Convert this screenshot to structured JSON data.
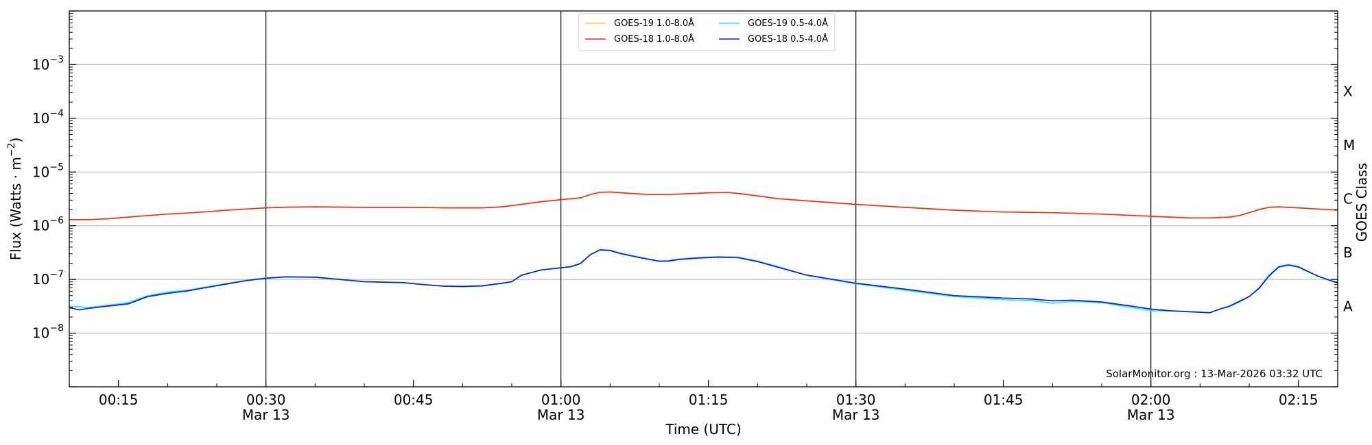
{
  "chart_data": {
    "type": "line",
    "xlabel": "Time (UTC)",
    "ylabel_main": "Flux (Watts · m",
    "ylabel_sup": "−2",
    "ylabel_tail": ")",
    "ylabel_right": "GOES Class",
    "yscale": "log",
    "ylim": [
      1e-09,
      0.01
    ],
    "xlim": [
      "00:10",
      "02:19"
    ],
    "grid": "horizontal",
    "legend_position": "top-center",
    "credit": "SolarMonitor.org : 13-Mar-2026 03:32 UTC",
    "y_ticks": [
      {
        "value": -8,
        "base": "10",
        "exp": "−8"
      },
      {
        "value": -7,
        "base": "10",
        "exp": "−7"
      },
      {
        "value": -6,
        "base": "10",
        "exp": "−6"
      },
      {
        "value": -5,
        "base": "10",
        "exp": "−5"
      },
      {
        "value": -4,
        "base": "10",
        "exp": "−4"
      },
      {
        "value": -3,
        "base": "10",
        "exp": "−3"
      }
    ],
    "goes_classes": [
      {
        "label": "A",
        "log_flux": -7.5
      },
      {
        "label": "B",
        "log_flux": -6.5
      },
      {
        "label": "C",
        "log_flux": -5.5
      },
      {
        "label": "M",
        "log_flux": -4.5
      },
      {
        "label": "X",
        "log_flux": -3.5
      }
    ],
    "x_ticks": [
      {
        "time": "00:15",
        "line1": "00:15",
        "line2": ""
      },
      {
        "time": "00:30",
        "line1": "00:30",
        "line2": "Mar 13"
      },
      {
        "time": "00:45",
        "line1": "00:45",
        "line2": ""
      },
      {
        "time": "01:00",
        "line1": "01:00",
        "line2": "Mar 13"
      },
      {
        "time": "01:15",
        "line1": "01:15",
        "line2": ""
      },
      {
        "time": "01:30",
        "line1": "01:30",
        "line2": "Mar 13"
      },
      {
        "time": "01:45",
        "line1": "01:45",
        "line2": ""
      },
      {
        "time": "02:00",
        "line1": "02:00",
        "line2": "Mar 13"
      },
      {
        "time": "02:15",
        "line1": "02:15",
        "line2": ""
      }
    ],
    "vertical_markers": [
      "00:30",
      "01:00",
      "01:30",
      "02:00"
    ],
    "series": [
      {
        "name": "GOES-19 1.0-8.0Å",
        "color": "#ffd21a",
        "x": [],
        "y": []
      },
      {
        "name": "GOES-18 1.0-8.0Å",
        "color": "#ff2a00",
        "x": [
          "00:10",
          "00:12",
          "00:14",
          "00:16",
          "00:18",
          "00:20",
          "00:22",
          "00:24",
          "00:26",
          "00:28",
          "00:30",
          "00:32",
          "00:35",
          "00:40",
          "00:45",
          "00:48",
          "00:50",
          "00:52",
          "00:54",
          "00:56",
          "00:58",
          "01:00",
          "01:02",
          "01:03",
          "01:04",
          "01:05",
          "01:07",
          "01:09",
          "01:11",
          "01:13",
          "01:15",
          "01:17",
          "01:18",
          "01:20",
          "01:22",
          "01:25",
          "01:30",
          "01:35",
          "01:40",
          "01:45",
          "01:50",
          "01:55",
          "02:00",
          "02:02",
          "02:04",
          "02:06",
          "02:08",
          "02:09",
          "02:10",
          "02:11",
          "02:12",
          "02:13",
          "02:14",
          "02:15",
          "02:17",
          "02:19"
        ],
        "y": [
          1.3e-06,
          1.3e-06,
          1.35e-06,
          1.45e-06,
          1.55e-06,
          1.65e-06,
          1.72e-06,
          1.82e-06,
          1.95e-06,
          2.05e-06,
          2.15e-06,
          2.22e-06,
          2.25e-06,
          2.2e-06,
          2.2e-06,
          2.15e-06,
          2.15e-06,
          2.15e-06,
          2.25e-06,
          2.5e-06,
          2.8e-06,
          3.05e-06,
          3.3e-06,
          3.8e-06,
          4.2e-06,
          4.25e-06,
          4e-06,
          3.8e-06,
          3.8e-06,
          3.95e-06,
          4.1e-06,
          4.15e-06,
          4e-06,
          3.6e-06,
          3.2e-06,
          2.9e-06,
          2.5e-06,
          2.2e-06,
          1.95e-06,
          1.8e-06,
          1.75e-06,
          1.65e-06,
          1.5e-06,
          1.45e-06,
          1.4e-06,
          1.4e-06,
          1.45e-06,
          1.55e-06,
          1.75e-06,
          2e-06,
          2.2e-06,
          2.25e-06,
          2.2e-06,
          2.15e-06,
          2.05e-06,
          1.95e-06
        ]
      },
      {
        "name": "GOES-19 0.5-4.0Å",
        "color": "#22e4ff",
        "x": [
          "00:10",
          "00:11",
          "00:12",
          "00:14",
          "00:16",
          "00:18",
          "00:20",
          "00:22",
          "00:24",
          "00:26",
          "00:28",
          "00:30",
          "00:32",
          "00:35",
          "00:40",
          "00:44",
          "00:46",
          "00:48",
          "00:50",
          "00:52",
          "00:54",
          "00:55",
          "00:56",
          "00:58",
          "01:00",
          "01:01",
          "01:02",
          "01:03",
          "01:04",
          "01:05",
          "01:06",
          "01:08",
          "01:10",
          "01:11",
          "01:12",
          "01:14",
          "01:16",
          "01:18",
          "01:20",
          "01:22",
          "01:25",
          "01:30",
          "01:35",
          "01:40",
          "01:45",
          "01:48",
          "01:50",
          "01:52",
          "01:55",
          "01:58",
          "02:00",
          "02:01",
          "02:02",
          "02:04",
          "02:06",
          "02:07",
          "02:08",
          "02:09",
          "02:10",
          "02:11",
          "02:12",
          "02:13",
          "02:14",
          "02:15",
          "02:17",
          "02:19"
        ],
        "y": [
          3.1e-08,
          3.1e-08,
          3e-08,
          3.3e-08,
          3.7e-08,
          5e-08,
          5.8e-08,
          6.3e-08,
          7.3e-08,
          8.4e-08,
          9.6e-08,
          1.07e-07,
          1.1e-07,
          1.1e-07,
          9e-08,
          8.7e-08,
          8e-08,
          7.5e-08,
          7.3e-08,
          7.5e-08,
          8.4e-08,
          9e-08,
          1.2e-07,
          1.5e-07,
          1.65e-07,
          1.75e-07,
          2e-07,
          2.9e-07,
          3.6e-07,
          3.5e-07,
          3.1e-07,
          2.6e-07,
          2.2e-07,
          2.25e-07,
          2.4e-07,
          2.55e-07,
          2.65e-07,
          2.6e-07,
          2.2e-07,
          1.75e-07,
          1.2e-07,
          8.3e-08,
          6.3e-08,
          4.8e-08,
          4.2e-08,
          4e-08,
          3.6e-08,
          3.9e-08,
          3.7e-08,
          3e-08,
          2.6e-08,
          2.6e-08,
          2.6e-08,
          2.5e-08,
          2.4e-08,
          2.8e-08,
          3.1e-08,
          3.8e-08,
          4.8e-08,
          7e-08,
          1.2e-07,
          1.75e-07,
          1.9e-07,
          1.75e-07,
          1.15e-07,
          8.5e-08
        ]
      },
      {
        "name": "GOES-18 0.5-4.0Å",
        "color": "#0a1ee6",
        "x": [
          "00:10",
          "00:11",
          "00:12",
          "00:14",
          "00:16",
          "00:18",
          "00:20",
          "00:22",
          "00:24",
          "00:26",
          "00:28",
          "00:30",
          "00:32",
          "00:35",
          "00:40",
          "00:44",
          "00:46",
          "00:48",
          "00:50",
          "00:52",
          "00:54",
          "00:55",
          "00:56",
          "00:58",
          "01:00",
          "01:01",
          "01:02",
          "01:03",
          "01:04",
          "01:05",
          "01:06",
          "01:08",
          "01:10",
          "01:11",
          "01:12",
          "01:14",
          "01:16",
          "01:18",
          "01:20",
          "01:22",
          "01:25",
          "01:30",
          "01:35",
          "01:40",
          "01:45",
          "01:48",
          "01:50",
          "01:52",
          "01:55",
          "01:58",
          "02:00",
          "02:01",
          "02:02",
          "02:04",
          "02:06",
          "02:07",
          "02:08",
          "02:09",
          "02:10",
          "02:11",
          "02:12",
          "02:13",
          "02:14",
          "02:15",
          "02:17",
          "02:19"
        ],
        "y": [
          3e-08,
          2.7e-08,
          2.9e-08,
          3.2e-08,
          3.5e-08,
          4.8e-08,
          5.5e-08,
          6.1e-08,
          7.1e-08,
          8.2e-08,
          9.5e-08,
          1.05e-07,
          1.12e-07,
          1.1e-07,
          9.1e-08,
          8.7e-08,
          8e-08,
          7.5e-08,
          7.4e-08,
          7.6e-08,
          8.5e-08,
          9.1e-08,
          1.2e-07,
          1.5e-07,
          1.65e-07,
          1.72e-07,
          1.98e-07,
          2.9e-07,
          3.55e-07,
          3.45e-07,
          3.05e-07,
          2.55e-07,
          2.18e-07,
          2.2e-07,
          2.35e-07,
          2.5e-07,
          2.6e-07,
          2.55e-07,
          2.15e-07,
          1.7e-07,
          1.2e-07,
          8.5e-08,
          6.6e-08,
          5e-08,
          4.5e-08,
          4.3e-08,
          4e-08,
          4.1e-08,
          3.8e-08,
          3.2e-08,
          2.8e-08,
          2.7e-08,
          2.6e-08,
          2.5e-08,
          2.4e-08,
          2.8e-08,
          3.2e-08,
          3.9e-08,
          4.8e-08,
          6.8e-08,
          1.15e-07,
          1.7e-07,
          1.85e-07,
          1.7e-07,
          1.15e-07,
          8.6e-08
        ]
      }
    ]
  }
}
